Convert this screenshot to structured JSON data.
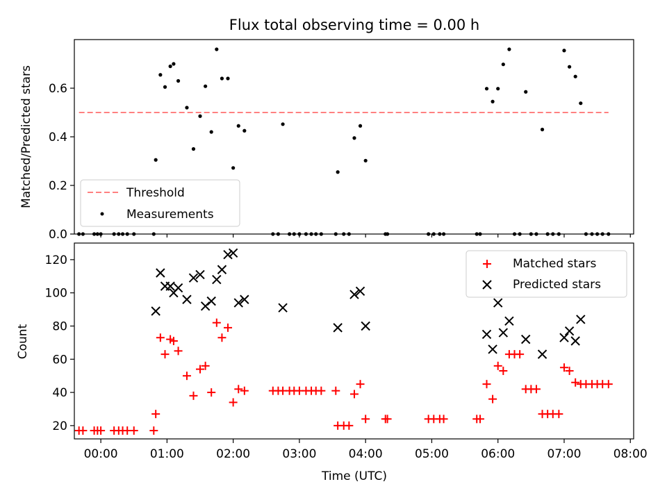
{
  "chart_data": [
    {
      "type": "scatter",
      "title": "Flux total observing time = 0.00 h",
      "xlabel": "",
      "ylabel": "Matched/Predicted stars",
      "xlim": [
        -0.4,
        8.05
      ],
      "ylim": [
        0,
        0.8
      ],
      "yticks": [
        0.0,
        0.2,
        0.4,
        0.6
      ],
      "ytick_labels": [
        "0.0",
        "0.2",
        "0.4",
        "0.6"
      ],
      "legend": {
        "position": "lower-left",
        "entries": [
          "Threshold",
          "Measurements"
        ]
      },
      "threshold": {
        "name": "Threshold",
        "x": [
          -0.33,
          7.67
        ],
        "value": 0.5,
        "color": "#ff8080",
        "style": "dashed"
      },
      "series": [
        {
          "name": "Measurements",
          "marker": "dot",
          "color": "#000000",
          "points": [
            [
              -0.33,
              0
            ],
            [
              -0.27,
              0
            ],
            [
              -0.1,
              0
            ],
            [
              -0.05,
              0
            ],
            [
              0.0,
              0
            ],
            [
              0.2,
              0
            ],
            [
              0.27,
              0
            ],
            [
              0.33,
              0
            ],
            [
              0.4,
              0
            ],
            [
              0.5,
              0
            ],
            [
              0.8,
              0
            ],
            [
              0.83,
              0.305
            ],
            [
              0.9,
              0.655
            ],
            [
              0.97,
              0.605
            ],
            [
              1.05,
              0.69
            ],
            [
              1.1,
              0.7
            ],
            [
              1.17,
              0.63
            ],
            [
              1.3,
              0.52
            ],
            [
              1.4,
              0.35
            ],
            [
              1.5,
              0.485
            ],
            [
              1.58,
              0.608
            ],
            [
              1.67,
              0.42
            ],
            [
              1.75,
              0.76
            ],
            [
              1.83,
              0.64
            ],
            [
              1.92,
              0.64
            ],
            [
              2.0,
              0.272
            ],
            [
              2.08,
              0.445
            ],
            [
              2.17,
              0.425
            ],
            [
              2.6,
              0
            ],
            [
              2.68,
              0
            ],
            [
              2.75,
              0.452
            ],
            [
              2.85,
              0
            ],
            [
              2.92,
              0
            ],
            [
              3.0,
              0
            ],
            [
              3.1,
              0
            ],
            [
              3.18,
              0
            ],
            [
              3.25,
              0
            ],
            [
              3.33,
              0
            ],
            [
              3.55,
              0
            ],
            [
              3.58,
              0.255
            ],
            [
              3.67,
              0
            ],
            [
              3.75,
              0
            ],
            [
              3.83,
              0.395
            ],
            [
              3.92,
              0.445
            ],
            [
              4.0,
              0.302
            ],
            [
              4.3,
              0
            ],
            [
              4.33,
              0
            ],
            [
              4.95,
              0
            ],
            [
              5.03,
              0
            ],
            [
              5.12,
              0
            ],
            [
              5.18,
              0
            ],
            [
              5.68,
              0
            ],
            [
              5.73,
              0
            ],
            [
              5.83,
              0.598
            ],
            [
              5.92,
              0.545
            ],
            [
              6.0,
              0.598
            ],
            [
              6.08,
              0.698
            ],
            [
              6.17,
              0.76
            ],
            [
              6.25,
              0
            ],
            [
              6.33,
              0
            ],
            [
              6.42,
              0.585
            ],
            [
              6.5,
              0
            ],
            [
              6.58,
              0
            ],
            [
              6.67,
              0.43
            ],
            [
              6.75,
              0
            ],
            [
              6.83,
              0
            ],
            [
              6.92,
              0
            ],
            [
              7.0,
              0.755
            ],
            [
              7.08,
              0.688
            ],
            [
              7.17,
              0.648
            ],
            [
              7.25,
              0.538
            ],
            [
              7.33,
              0
            ],
            [
              7.42,
              0
            ],
            [
              7.5,
              0
            ],
            [
              7.58,
              0
            ],
            [
              7.67,
              0
            ]
          ]
        }
      ]
    },
    {
      "type": "scatter",
      "title": "",
      "xlabel": "Time (UTC)",
      "ylabel": "Count",
      "xlim": [
        -0.4,
        8.05
      ],
      "ylim": [
        12,
        130
      ],
      "yticks": [
        20,
        40,
        60,
        80,
        100,
        120
      ],
      "ytick_labels": [
        "20",
        "40",
        "60",
        "80",
        "100",
        "120"
      ],
      "xticks": [
        0,
        1,
        2,
        3,
        4,
        5,
        6,
        7,
        8
      ],
      "xtick_labels": [
        "00:00",
        "01:00",
        "02:00",
        "03:00",
        "04:00",
        "05:00",
        "06:00",
        "07:00",
        "08:00"
      ],
      "legend": {
        "position": "upper-right",
        "entries": [
          "Matched stars",
          "Predicted stars"
        ]
      },
      "series": [
        {
          "name": "Matched stars",
          "marker": "plus",
          "color": "#ff0000",
          "points": [
            [
              -0.33,
              17
            ],
            [
              -0.27,
              17
            ],
            [
              -0.1,
              17
            ],
            [
              -0.05,
              17
            ],
            [
              0.0,
              17
            ],
            [
              0.2,
              17
            ],
            [
              0.27,
              17
            ],
            [
              0.33,
              17
            ],
            [
              0.4,
              17
            ],
            [
              0.5,
              17
            ],
            [
              0.8,
              17
            ],
            [
              0.83,
              27
            ],
            [
              0.9,
              73
            ],
            [
              0.97,
              63
            ],
            [
              1.05,
              72
            ],
            [
              1.1,
              71
            ],
            [
              1.17,
              65
            ],
            [
              1.3,
              50
            ],
            [
              1.4,
              38
            ],
            [
              1.5,
              54
            ],
            [
              1.58,
              56
            ],
            [
              1.67,
              40
            ],
            [
              1.75,
              82
            ],
            [
              1.83,
              73
            ],
            [
              1.92,
              79
            ],
            [
              2.0,
              34
            ],
            [
              2.08,
              42
            ],
            [
              2.17,
              41
            ],
            [
              2.6,
              41
            ],
            [
              2.68,
              41
            ],
            [
              2.75,
              41
            ],
            [
              2.85,
              41
            ],
            [
              2.92,
              41
            ],
            [
              3.0,
              41
            ],
            [
              3.1,
              41
            ],
            [
              3.18,
              41
            ],
            [
              3.25,
              41
            ],
            [
              3.33,
              41
            ],
            [
              3.55,
              41
            ],
            [
              3.58,
              20
            ],
            [
              3.67,
              20
            ],
            [
              3.75,
              20
            ],
            [
              3.83,
              39
            ],
            [
              3.92,
              45
            ],
            [
              4.0,
              24
            ],
            [
              4.3,
              24
            ],
            [
              4.33,
              24
            ],
            [
              4.95,
              24
            ],
            [
              5.03,
              24
            ],
            [
              5.12,
              24
            ],
            [
              5.18,
              24
            ],
            [
              5.68,
              24
            ],
            [
              5.73,
              24
            ],
            [
              5.83,
              45
            ],
            [
              5.92,
              36
            ],
            [
              6.0,
              56
            ],
            [
              6.08,
              53
            ],
            [
              6.17,
              63
            ],
            [
              6.25,
              63
            ],
            [
              6.33,
              63
            ],
            [
              6.42,
              42
            ],
            [
              6.5,
              42
            ],
            [
              6.58,
              42
            ],
            [
              6.67,
              27
            ],
            [
              6.75,
              27
            ],
            [
              6.83,
              27
            ],
            [
              6.92,
              27
            ],
            [
              7.0,
              55
            ],
            [
              7.08,
              53
            ],
            [
              7.17,
              46
            ],
            [
              7.25,
              45
            ],
            [
              7.33,
              45
            ],
            [
              7.42,
              45
            ],
            [
              7.5,
              45
            ],
            [
              7.58,
              45
            ],
            [
              7.67,
              45
            ]
          ]
        },
        {
          "name": "Predicted stars",
          "marker": "x",
          "color": "#000000",
          "points": [
            [
              0.83,
              89
            ],
            [
              0.9,
              112
            ],
            [
              0.97,
              104
            ],
            [
              1.05,
              104
            ],
            [
              1.1,
              100
            ],
            [
              1.17,
              103
            ],
            [
              1.3,
              96
            ],
            [
              1.4,
              109
            ],
            [
              1.5,
              111
            ],
            [
              1.58,
              92
            ],
            [
              1.67,
              95
            ],
            [
              1.75,
              108
            ],
            [
              1.83,
              114
            ],
            [
              1.92,
              123
            ],
            [
              2.0,
              124
            ],
            [
              2.08,
              94
            ],
            [
              2.17,
              96
            ],
            [
              2.75,
              91
            ],
            [
              3.58,
              79
            ],
            [
              3.83,
              99
            ],
            [
              3.92,
              101
            ],
            [
              4.0,
              80
            ],
            [
              5.83,
              75
            ],
            [
              5.92,
              66
            ],
            [
              6.0,
              94
            ],
            [
              6.08,
              76
            ],
            [
              6.17,
              83
            ],
            [
              6.42,
              72
            ],
            [
              6.67,
              63
            ],
            [
              7.0,
              73
            ],
            [
              7.08,
              77
            ],
            [
              7.17,
              71
            ],
            [
              7.25,
              84
            ]
          ]
        }
      ]
    }
  ]
}
